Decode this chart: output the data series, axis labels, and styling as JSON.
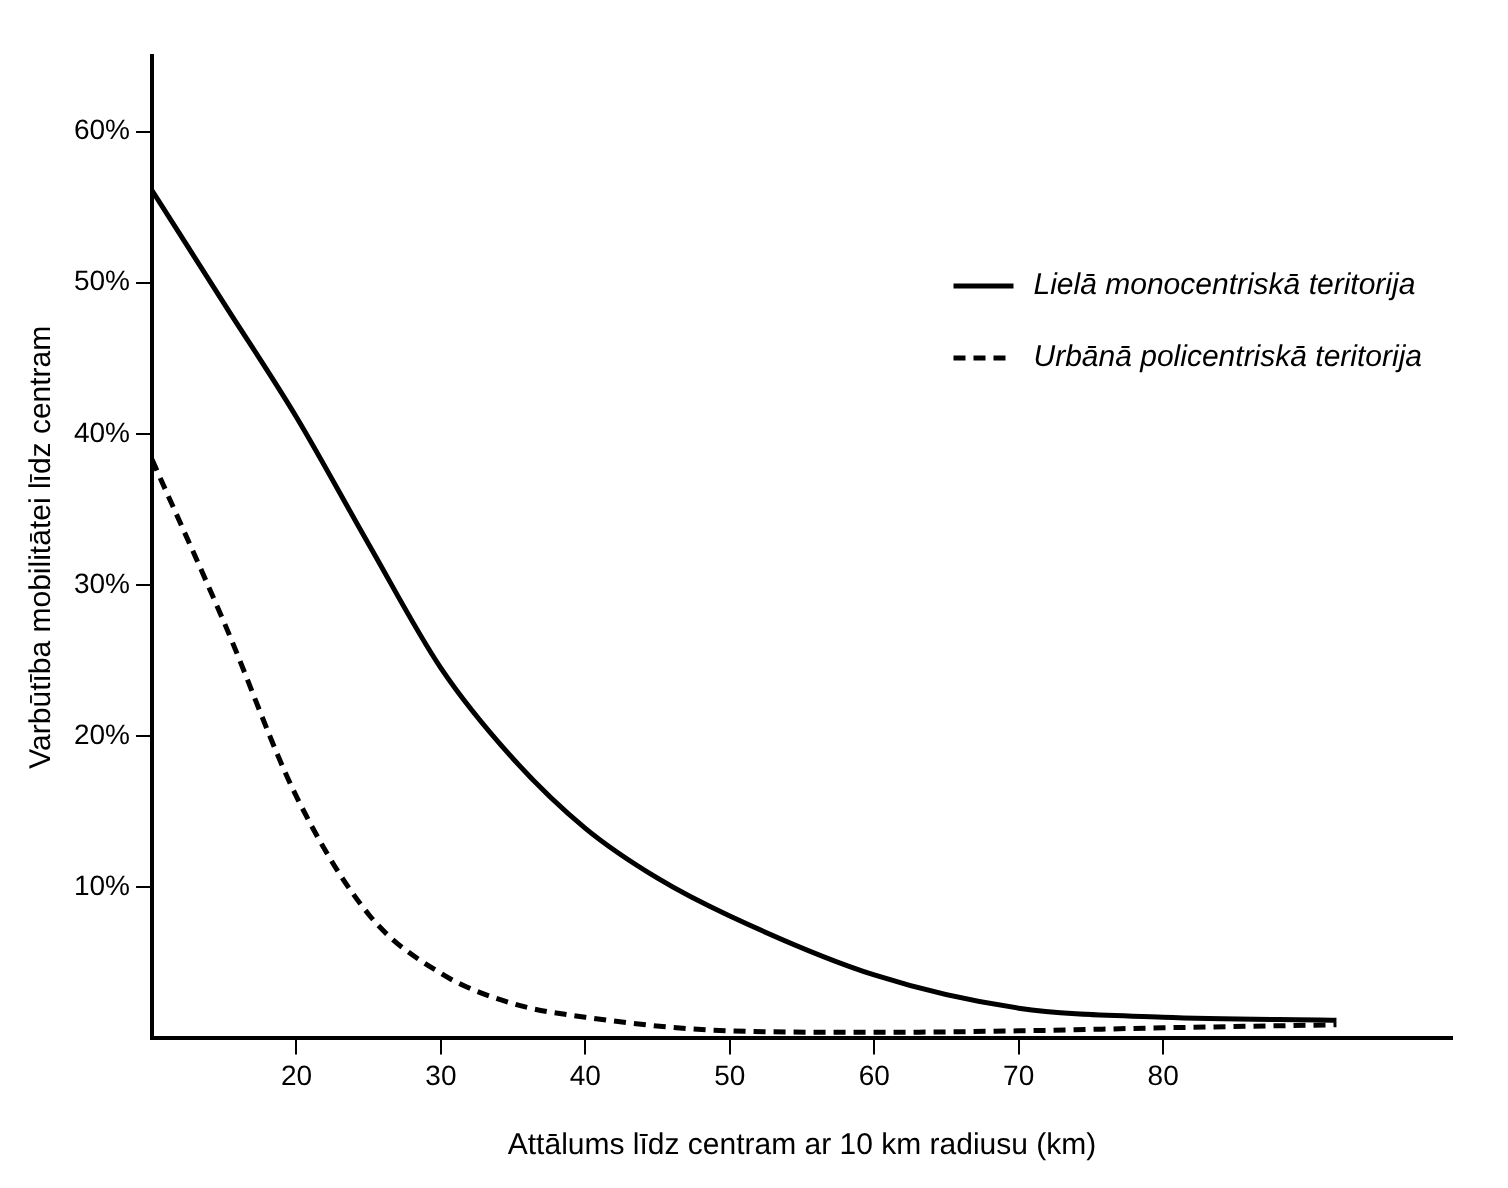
{
  "chart_data": {
    "type": "line",
    "xlabel": "Attālums līdz centram ar 10 km radiusu (km)",
    "ylabel": "Varbūtība mobilitātei līdz centram",
    "xlim": [
      10,
      100
    ],
    "xticks": [
      20,
      30,
      40,
      50,
      60,
      70,
      80
    ],
    "ylim": [
      0,
      65
    ],
    "yticks": [
      {
        "value": 10,
        "label": "10%"
      },
      {
        "value": 20,
        "label": "20%"
      },
      {
        "value": 30,
        "label": "30%"
      },
      {
        "value": 40,
        "label": "40%"
      },
      {
        "value": 50,
        "label": "50%"
      },
      {
        "value": 60,
        "label": "60%"
      }
    ],
    "grid": false,
    "legend": "top right",
    "marker": "none",
    "series": [
      {
        "name": "Lielā monocentriskā teritorija",
        "color": "#000000",
        "line_style": "solid",
        "x": [
          10,
          15,
          20,
          25,
          30,
          35,
          40,
          45,
          50,
          60,
          70,
          80,
          92
        ],
        "values": [
          56.1,
          48.6,
          41.1,
          32.7,
          24.5,
          18.5,
          13.9,
          10.6,
          8.1,
          4.2,
          2.0,
          1.4,
          1.2
        ]
      },
      {
        "name": "Urbānā policentriskā teritorija",
        "color": "#000000",
        "line_style": "dashed",
        "x": [
          10,
          15,
          20,
          25,
          30,
          35,
          40,
          50,
          60,
          70,
          80,
          92
        ],
        "values": [
          38.3,
          27.5,
          16.0,
          8.2,
          4.3,
          2.3,
          1.4,
          0.5,
          0.4,
          0.5,
          0.7,
          0.9
        ]
      }
    ]
  }
}
